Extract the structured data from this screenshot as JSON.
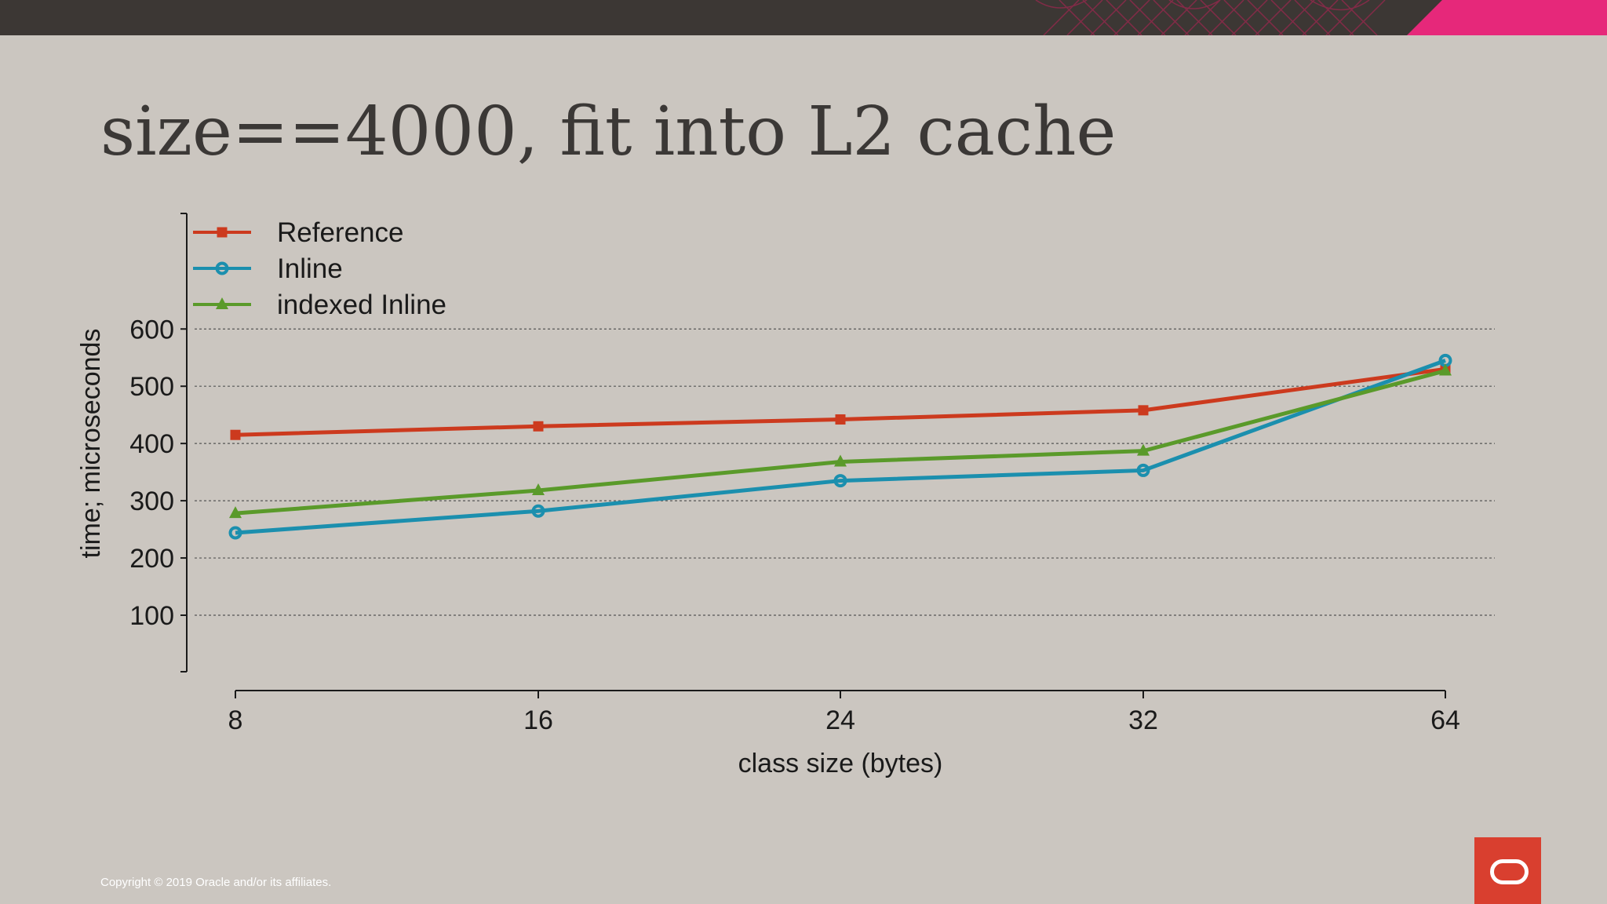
{
  "slide": {
    "title": "size==4000, fit into L2 cache",
    "copyright": "Copyright © 2019 Oracle and/or its affiliates.",
    "accent_color": "#e6287a",
    "logo_color": "#d93f2f",
    "logo_icon": "oracle-logo-icon"
  },
  "chart_data": {
    "type": "line",
    "categories": [
      "8",
      "16",
      "24",
      "32",
      "64"
    ],
    "xlabel": "class size (bytes)",
    "ylabel": "time; microseconds",
    "yticks": [
      100,
      200,
      300,
      400,
      500,
      600
    ],
    "ylim": [
      0,
      800
    ],
    "grid": "horizontal-dotted",
    "legend_position": "top-left",
    "series": [
      {
        "name": "Reference",
        "marker": "square",
        "color": "#cc3a1e",
        "values": [
          415,
          430,
          442,
          458,
          530
        ]
      },
      {
        "name": "Inline",
        "marker": "circle",
        "color": "#1b8fae",
        "values": [
          244,
          282,
          335,
          353,
          545
        ]
      },
      {
        "name": "indexed Inline",
        "marker": "triangle",
        "color": "#5a9a2a",
        "values": [
          278,
          318,
          368,
          387,
          527
        ]
      }
    ]
  }
}
